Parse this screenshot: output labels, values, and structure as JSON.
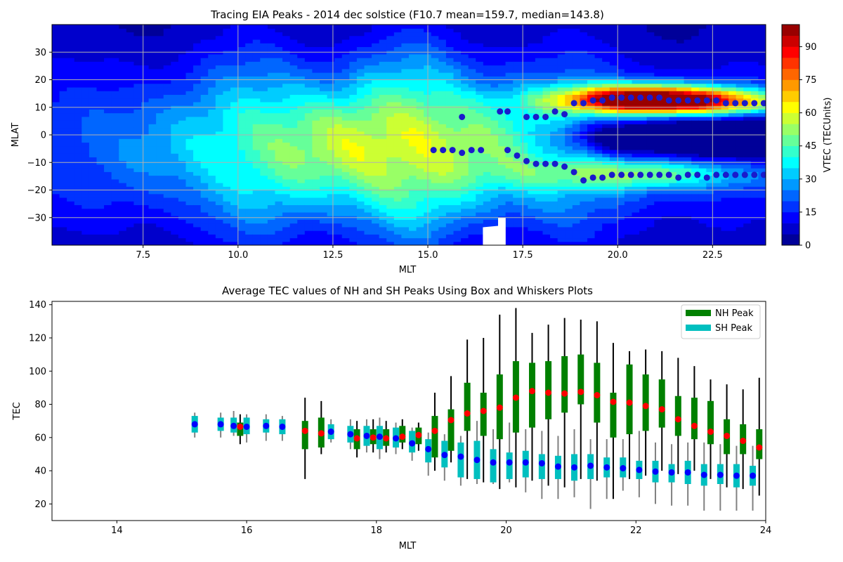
{
  "chart_data": [
    {
      "type": "heatmap",
      "title": "Tracing EIA Peaks - 2014 dec solstice (F10.7 mean=159.7, median=143.8)",
      "xlabel": "MLT",
      "ylabel": "MLAT",
      "xlim": [
        5.1,
        23.9
      ],
      "ylim": [
        -40,
        40
      ],
      "xticks": [
        7.5,
        10.0,
        12.5,
        15.0,
        17.5,
        20.0,
        22.5
      ],
      "xtick_labels": [
        "7.5",
        "10.0",
        "12.5",
        "15.0",
        "17.5",
        "20.0",
        "22.5"
      ],
      "yticks": [
        -30,
        -20,
        -10,
        0,
        10,
        20,
        30
      ],
      "ytick_labels": [
        "−30",
        "−20",
        "−10",
        "0",
        "10",
        "20",
        "30"
      ],
      "grid": true,
      "colorbar": {
        "label": "VTEC (TECUnits)",
        "min": 0,
        "max": 100,
        "levels": 20,
        "ticks": [
          0,
          15,
          30,
          45,
          60,
          75,
          90
        ],
        "tick_labels": [
          "0",
          "15",
          "30",
          "45",
          "60",
          "75",
          "90"
        ],
        "colormap": "jet"
      },
      "peaks_nh": [
        {
          "mlt": 15.9,
          "mlat": 6.5
        },
        {
          "mlt": 16.9,
          "mlat": 8.5
        },
        {
          "mlt": 17.1,
          "mlat": 8.5
        },
        {
          "mlt": 17.6,
          "mlat": 6.5
        },
        {
          "mlt": 17.85,
          "mlat": 6.5
        },
        {
          "mlt": 18.1,
          "mlat": 6.5
        },
        {
          "mlt": 18.35,
          "mlat": 8.5
        },
        {
          "mlt": 18.6,
          "mlat": 7.5
        },
        {
          "mlt": 18.85,
          "mlat": 11.5
        },
        {
          "mlt": 19.1,
          "mlat": 11.5
        },
        {
          "mlt": 19.35,
          "mlat": 12.5
        },
        {
          "mlt": 19.6,
          "mlat": 12.5
        },
        {
          "mlt": 19.85,
          "mlat": 13.5
        },
        {
          "mlt": 20.1,
          "mlat": 13.5
        },
        {
          "mlt": 20.35,
          "mlat": 13.5
        },
        {
          "mlt": 20.6,
          "mlat": 13.5
        },
        {
          "mlt": 20.85,
          "mlat": 13.5
        },
        {
          "mlt": 21.1,
          "mlat": 13.5
        },
        {
          "mlt": 21.35,
          "mlat": 12.5
        },
        {
          "mlt": 21.6,
          "mlat": 12.5
        },
        {
          "mlt": 21.85,
          "mlat": 12.5
        },
        {
          "mlt": 22.1,
          "mlat": 12.5
        },
        {
          "mlt": 22.35,
          "mlat": 12.5
        },
        {
          "mlt": 22.6,
          "mlat": 12.5
        },
        {
          "mlt": 22.85,
          "mlat": 11.5
        },
        {
          "mlt": 23.1,
          "mlat": 11.5
        },
        {
          "mlt": 23.35,
          "mlat": 11.5
        },
        {
          "mlt": 23.6,
          "mlat": 11.5
        },
        {
          "mlt": 23.85,
          "mlat": 11.5
        }
      ],
      "peaks_sh": [
        {
          "mlt": 15.15,
          "mlat": -5.5
        },
        {
          "mlt": 15.4,
          "mlat": -5.5
        },
        {
          "mlt": 15.65,
          "mlat": -5.5
        },
        {
          "mlt": 15.9,
          "mlat": -6.5
        },
        {
          "mlt": 16.15,
          "mlat": -5.5
        },
        {
          "mlt": 16.4,
          "mlat": -5.5
        },
        {
          "mlt": 17.1,
          "mlat": -5.5
        },
        {
          "mlt": 17.35,
          "mlat": -7.5
        },
        {
          "mlt": 17.6,
          "mlat": -9.5
        },
        {
          "mlt": 17.85,
          "mlat": -10.5
        },
        {
          "mlt": 18.1,
          "mlat": -10.5
        },
        {
          "mlt": 18.35,
          "mlat": -10.5
        },
        {
          "mlt": 18.6,
          "mlat": -11.5
        },
        {
          "mlt": 18.85,
          "mlat": -13.5
        },
        {
          "mlt": 19.1,
          "mlat": -16.5
        },
        {
          "mlt": 19.35,
          "mlat": -15.5
        },
        {
          "mlt": 19.6,
          "mlat": -15.5
        },
        {
          "mlt": 19.85,
          "mlat": -14.5
        },
        {
          "mlt": 20.1,
          "mlat": -14.5
        },
        {
          "mlt": 20.35,
          "mlat": -14.5
        },
        {
          "mlt": 20.6,
          "mlat": -14.5
        },
        {
          "mlt": 20.85,
          "mlat": -14.5
        },
        {
          "mlt": 21.1,
          "mlat": -14.5
        },
        {
          "mlt": 21.35,
          "mlat": -14.5
        },
        {
          "mlt": 21.6,
          "mlat": -15.5
        },
        {
          "mlt": 21.85,
          "mlat": -14.5
        },
        {
          "mlt": 22.1,
          "mlat": -14.5
        },
        {
          "mlt": 22.35,
          "mlat": -15.5
        },
        {
          "mlt": 22.6,
          "mlat": -14.5
        },
        {
          "mlt": 22.85,
          "mlat": -14.5
        },
        {
          "mlt": 23.1,
          "mlat": -14.5
        },
        {
          "mlt": 23.35,
          "mlat": -14.5
        },
        {
          "mlt": 23.6,
          "mlat": -14.5
        },
        {
          "mlt": 23.85,
          "mlat": -14.5
        }
      ],
      "peak_marker_color": "#1a1acc"
    },
    {
      "type": "box",
      "title": "Average TEC values of NH and SH Peaks Using Box and Whiskers Plots",
      "xlabel": "MLT",
      "ylabel": "TEC",
      "xlim": [
        13,
        24
      ],
      "ylim": [
        10,
        142
      ],
      "xticks": [
        14,
        16,
        18,
        20,
        22,
        24
      ],
      "xtick_labels": [
        "14",
        "16",
        "18",
        "20",
        "22",
        "24"
      ],
      "yticks": [
        20,
        40,
        60,
        80,
        100,
        120,
        140
      ],
      "ytick_labels": [
        "20",
        "40",
        "60",
        "80",
        "100",
        "120",
        "140"
      ],
      "legend": {
        "position": "top-right",
        "entries": [
          "NH Peak",
          "SH Peak"
        ]
      },
      "colors": {
        "nh_box": "#008000",
        "sh_box": "#00bfbf",
        "nh_mean": "#ff0000",
        "sh_mean": "#0000ff",
        "nh_whisker": "#000000",
        "sh_whisker": "#808080"
      },
      "series": [
        {
          "name": "NH Peak",
          "boxes": [
            {
              "x": 15.9,
              "low": 56,
              "q1": 61,
              "q3": 69,
              "high": 74,
              "mean": 66.5
            },
            {
              "x": 16.9,
              "low": 35,
              "q1": 53,
              "q3": 70,
              "high": 84,
              "mean": 64
            },
            {
              "x": 17.15,
              "low": 50,
              "q1": 54,
              "q3": 72,
              "high": 82,
              "mean": 62.5
            },
            {
              "x": 17.7,
              "low": 48,
              "q1": 53,
              "q3": 65,
              "high": 70,
              "mean": 59.5
            },
            {
              "x": 17.95,
              "low": 51,
              "q1": 56,
              "q3": 65,
              "high": 71,
              "mean": 60
            },
            {
              "x": 18.15,
              "low": 51,
              "q1": 55,
              "q3": 65,
              "high": 70,
              "mean": 59.5
            },
            {
              "x": 18.4,
              "low": 53,
              "q1": 57,
              "q3": 67,
              "high": 71,
              "mean": 60.5
            },
            {
              "x": 18.65,
              "low": 52,
              "q1": 56,
              "q3": 66,
              "high": 69,
              "mean": 61.5
            },
            {
              "x": 18.9,
              "low": 40,
              "q1": 48,
              "q3": 73,
              "high": 87,
              "mean": 64
            },
            {
              "x": 19.15,
              "low": 45,
              "q1": 52,
              "q3": 77,
              "high": 97,
              "mean": 70.5
            },
            {
              "x": 19.4,
              "low": 35,
              "q1": 64,
              "q3": 93,
              "high": 119,
              "mean": 74.5
            },
            {
              "x": 19.65,
              "low": 33,
              "q1": 61,
              "q3": 87,
              "high": 120,
              "mean": 76
            },
            {
              "x": 19.9,
              "low": 29,
              "q1": 59,
              "q3": 98,
              "high": 134,
              "mean": 78
            },
            {
              "x": 20.15,
              "low": 30,
              "q1": 63,
              "q3": 106,
              "high": 138,
              "mean": 84
            },
            {
              "x": 20.4,
              "low": 34,
              "q1": 66,
              "q3": 105,
              "high": 123,
              "mean": 88
            },
            {
              "x": 20.65,
              "low": 31,
              "q1": 71,
              "q3": 106,
              "high": 128,
              "mean": 87
            },
            {
              "x": 20.9,
              "low": 30,
              "q1": 75,
              "q3": 109,
              "high": 132,
              "mean": 86.5
            },
            {
              "x": 21.15,
              "low": 35,
              "q1": 80,
              "q3": 110,
              "high": 131,
              "mean": 87.5
            },
            {
              "x": 21.4,
              "low": 34,
              "q1": 69,
              "q3": 105,
              "high": 130,
              "mean": 85.5
            },
            {
              "x": 21.65,
              "low": 23,
              "q1": 60,
              "q3": 87,
              "high": 117,
              "mean": 81.5
            },
            {
              "x": 21.9,
              "low": 35,
              "q1": 62,
              "q3": 104,
              "high": 112,
              "mean": 81
            },
            {
              "x": 22.15,
              "low": 37,
              "q1": 64,
              "q3": 98,
              "high": 113,
              "mean": 79
            },
            {
              "x": 22.4,
              "low": 40,
              "q1": 66,
              "q3": 95,
              "high": 112,
              "mean": 77
            },
            {
              "x": 22.65,
              "low": 38,
              "q1": 61,
              "q3": 85,
              "high": 108,
              "mean": 71
            },
            {
              "x": 22.9,
              "low": 40,
              "q1": 59,
              "q3": 84,
              "high": 103,
              "mean": 67
            },
            {
              "x": 23.15,
              "low": 35,
              "q1": 56,
              "q3": 82,
              "high": 95,
              "mean": 63.5
            },
            {
              "x": 23.4,
              "low": 30,
              "q1": 50,
              "q3": 71,
              "high": 92,
              "mean": 61
            },
            {
              "x": 23.65,
              "low": 29,
              "q1": 50,
              "q3": 68,
              "high": 89,
              "mean": 58
            },
            {
              "x": 23.9,
              "low": 25,
              "q1": 47,
              "q3": 65,
              "high": 96,
              "mean": 54
            }
          ]
        },
        {
          "name": "SH Peak",
          "boxes": [
            {
              "x": 15.2,
              "low": 60,
              "q1": 63,
              "q3": 73,
              "high": 75,
              "mean": 68
            },
            {
              "x": 15.6,
              "low": 60,
              "q1": 64,
              "q3": 72,
              "high": 75,
              "mean": 68
            },
            {
              "x": 15.8,
              "low": 61,
              "q1": 63,
              "q3": 72,
              "high": 76,
              "mean": 67
            },
            {
              "x": 16.0,
              "low": 57,
              "q1": 62,
              "q3": 72,
              "high": 74,
              "mean": 66.5
            },
            {
              "x": 16.3,
              "low": 58,
              "q1": 63,
              "q3": 71,
              "high": 74,
              "mean": 67
            },
            {
              "x": 16.55,
              "low": 58,
              "q1": 62,
              "q3": 71,
              "high": 73,
              "mean": 66.5
            },
            {
              "x": 17.3,
              "low": 57,
              "q1": 59,
              "q3": 68,
              "high": 71,
              "mean": 63.5
            },
            {
              "x": 17.6,
              "low": 53,
              "q1": 57,
              "q3": 67,
              "high": 71,
              "mean": 62
            },
            {
              "x": 17.85,
              "low": 51,
              "q1": 55,
              "q3": 67,
              "high": 71,
              "mean": 61
            },
            {
              "x": 18.05,
              "low": 47,
              "q1": 53,
              "q3": 67,
              "high": 72,
              "mean": 60.5
            },
            {
              "x": 18.3,
              "low": 50,
              "q1": 54,
              "q3": 66,
              "high": 69,
              "mean": 59.5
            },
            {
              "x": 18.55,
              "low": 46,
              "q1": 51,
              "q3": 64,
              "high": 66,
              "mean": 56.5
            },
            {
              "x": 18.8,
              "low": 37,
              "q1": 45,
              "q3": 59,
              "high": 63,
              "mean": 53
            },
            {
              "x": 19.05,
              "low": 34,
              "q1": 42,
              "q3": 58,
              "high": 62,
              "mean": 49.5
            },
            {
              "x": 19.3,
              "low": 31,
              "q1": 36,
              "q3": 57,
              "high": 61,
              "mean": 48.5
            },
            {
              "x": 19.55,
              "low": 32,
              "q1": 35,
              "q3": 58,
              "high": 70,
              "mean": 46.5
            },
            {
              "x": 19.8,
              "low": 32,
              "q1": 33,
              "q3": 53,
              "high": 65,
              "mean": 45
            },
            {
              "x": 20.05,
              "low": 33,
              "q1": 35,
              "q3": 51,
              "high": 69,
              "mean": 45
            },
            {
              "x": 20.3,
              "low": 27,
              "q1": 36,
              "q3": 52,
              "high": 65,
              "mean": 45
            },
            {
              "x": 20.55,
              "low": 23,
              "q1": 35,
              "q3": 50,
              "high": 64,
              "mean": 44.5
            },
            {
              "x": 20.8,
              "low": 23,
              "q1": 35,
              "q3": 49,
              "high": 61,
              "mean": 42.5
            },
            {
              "x": 21.05,
              "low": 24,
              "q1": 34,
              "q3": 50,
              "high": 65,
              "mean": 42
            },
            {
              "x": 21.3,
              "low": 17,
              "q1": 35,
              "q3": 50,
              "high": 59,
              "mean": 43
            },
            {
              "x": 21.55,
              "low": 23,
              "q1": 36,
              "q3": 48,
              "high": 59,
              "mean": 42
            },
            {
              "x": 21.8,
              "low": 28,
              "q1": 36,
              "q3": 48,
              "high": 59,
              "mean": 41.5
            },
            {
              "x": 22.05,
              "low": 24,
              "q1": 35,
              "q3": 46,
              "high": 64,
              "mean": 40.5
            },
            {
              "x": 22.3,
              "low": 20,
              "q1": 33,
              "q3": 46,
              "high": 57,
              "mean": 39.5
            },
            {
              "x": 22.55,
              "low": 19,
              "q1": 33,
              "q3": 44,
              "high": 56,
              "mean": 39
            },
            {
              "x": 22.8,
              "low": 19,
              "q1": 32,
              "q3": 46,
              "high": 57,
              "mean": 39
            },
            {
              "x": 23.05,
              "low": 16,
              "q1": 31,
              "q3": 44,
              "high": 57,
              "mean": 37.5
            },
            {
              "x": 23.3,
              "low": 16,
              "q1": 32,
              "q3": 44,
              "high": 56,
              "mean": 37.5
            },
            {
              "x": 23.55,
              "low": 16,
              "q1": 30,
              "q3": 44,
              "high": 55,
              "mean": 37
            },
            {
              "x": 23.8,
              "low": 16,
              "q1": 31,
              "q3": 43,
              "high": 55,
              "mean": 37
            },
            {
              "x": 24.05,
              "low": 17,
              "q1": 30,
              "q3": 43,
              "high": 56,
              "mean": 36.5
            }
          ]
        }
      ]
    }
  ]
}
